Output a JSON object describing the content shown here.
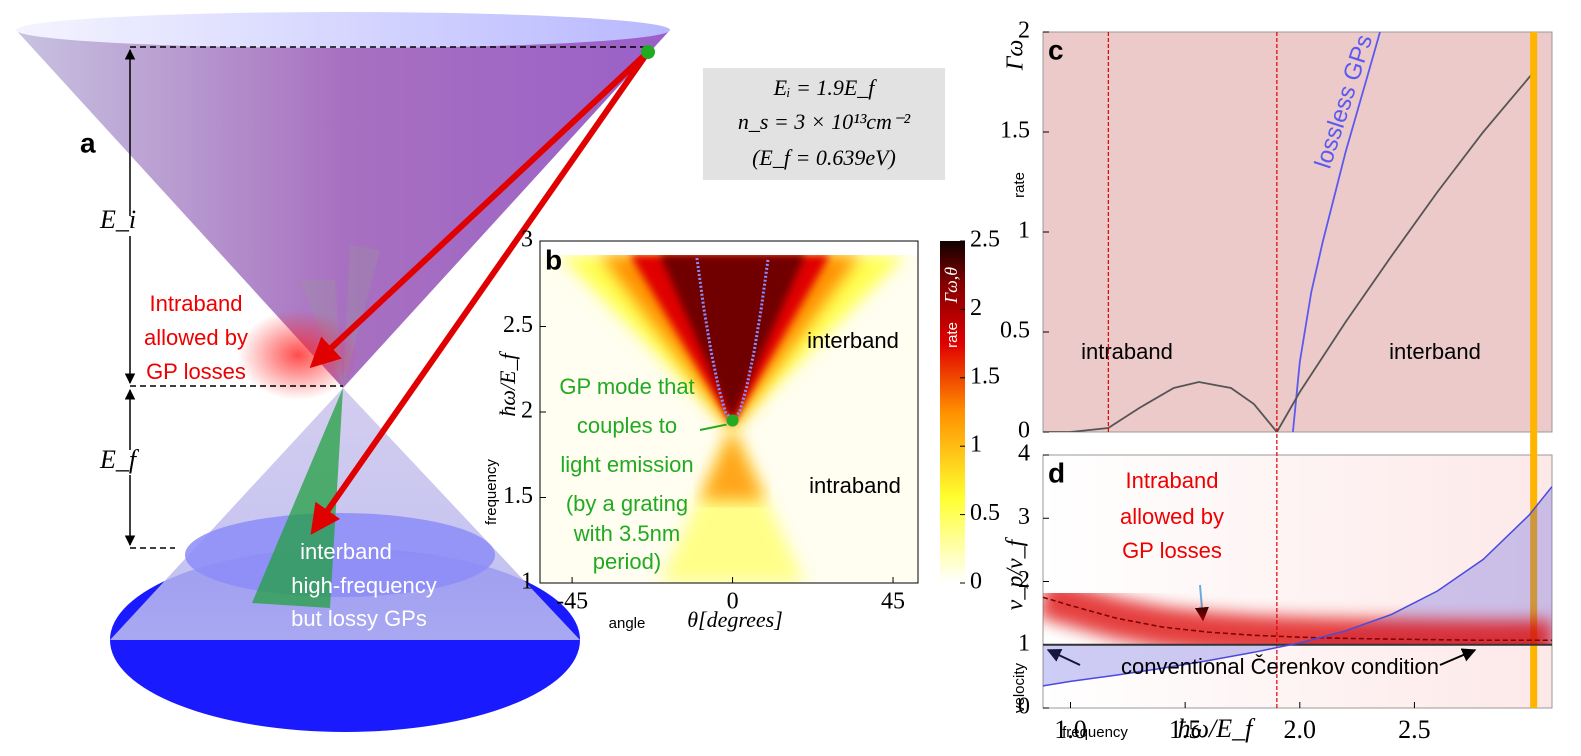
{
  "diagram": {
    "label": "a",
    "energy_labels": [
      "E_i",
      "E_f"
    ],
    "intraband_note": [
      "Intraband",
      "allowed by",
      "GP losses"
    ],
    "interband_note": [
      "interband",
      "high-frequency",
      "but lossy GPs"
    ]
  },
  "parameters": [
    "Eᵢ = 1.9E_f",
    "n_s = 3 × 10¹³cm⁻²",
    "(E_f = 0.639eV)"
  ],
  "chart_data": [
    {
      "type": "heatmap",
      "panel_label": "b",
      "xlabel_name": "angle",
      "xlabel": "θ[degrees]",
      "ylabel_name": "frequency",
      "ylabel": "ħω/E_f",
      "xlim": [
        -54,
        52
      ],
      "ylim": [
        1,
        3
      ],
      "xticks": [
        -45,
        0,
        45
      ],
      "yticks": [
        1,
        1.5,
        2,
        2.5,
        3
      ],
      "annotations": [
        "interband",
        "intraband"
      ],
      "gp_note": [
        "GP mode that",
        "couples to",
        "light emission",
        "(by a grating",
        "with 3.5nm",
        "period)"
      ],
      "series": [
        {
          "color": "#8c8cff",
          "x": [
            -10,
            -8,
            -6,
            -4,
            -2,
            0
          ],
          "values": [
            2.9,
            2.6,
            2.35,
            2.15,
            2.0,
            1.95
          ]
        },
        {
          "color": "#8c8cff",
          "x": [
            0,
            2,
            4,
            6,
            8,
            10
          ],
          "values": [
            1.95,
            2.0,
            2.15,
            2.35,
            2.6,
            2.9
          ]
        }
      ],
      "marker": {
        "x": 0,
        "y": 1.95,
        "color": "#22aa22"
      },
      "colorbar": {
        "label": "Γω,θ",
        "name": "rate",
        "lim": [
          0,
          2.5
        ],
        "ticks": [
          0,
          0.5,
          1,
          1.5,
          2,
          2.5
        ]
      }
    },
    {
      "type": "line",
      "panel_label": "c",
      "ylabel": "Γω",
      "ylabel_name": "rate",
      "xlim": [
        0.88,
        3.1
      ],
      "ylim": [
        0,
        2
      ],
      "yticks": [
        0,
        0.5,
        1,
        1.5,
        2
      ],
      "vlines": [
        1.165,
        1.9
      ],
      "highlight_x": 3.02,
      "region_labels": [
        "intraband",
        "interband"
      ],
      "series": [
        {
          "name": "lossless GPs",
          "color": "#5a5af0",
          "x": [
            1.97,
            2.0,
            2.05,
            2.1,
            2.2,
            2.3,
            2.35
          ],
          "values": [
            0,
            0.35,
            0.7,
            0.95,
            1.4,
            1.8,
            2.0
          ]
        },
        {
          "color": "#555555",
          "x": [
            0.88,
            1.0,
            1.165,
            1.3,
            1.45,
            1.56,
            1.7,
            1.8,
            1.9,
            2.0,
            2.2,
            2.4,
            2.6,
            2.8,
            3.02
          ],
          "values": [
            0,
            0,
            0.02,
            0.12,
            0.22,
            0.25,
            0.22,
            0.14,
            0,
            0.2,
            0.55,
            0.88,
            1.2,
            1.5,
            1.8
          ]
        }
      ]
    },
    {
      "type": "line",
      "panel_label": "d",
      "ylabel": "v_p/v_f",
      "ylabel_name": "velocity",
      "xlabel": "ħω/E_f",
      "xlabel_name": "frequency",
      "xlim": [
        0.88,
        3.1
      ],
      "ylim": [
        0,
        4
      ],
      "yticks": [
        0,
        1,
        2,
        3,
        4
      ],
      "xticks": [
        {
          "value": 1,
          "label": "1.0"
        },
        1.5,
        {
          "value": 2,
          "label": "2.0"
        },
        2.5
      ],
      "reference_y": 1,
      "annotations": {
        "losses": [
          "Intraband",
          "allowed by",
          "GP losses"
        ],
        "cherenkov": "conventional Čerenkov condition"
      },
      "series": [
        {
          "color": "#4a4ae0",
          "x": [
            0.88,
            1.0,
            1.2,
            1.4,
            1.6,
            1.8,
            2.0,
            2.2,
            2.4,
            2.6,
            2.8,
            3.0,
            3.1
          ],
          "values": [
            0.35,
            0.42,
            0.52,
            0.63,
            0.75,
            0.88,
            1.03,
            1.22,
            1.48,
            1.85,
            2.35,
            3.05,
            3.5
          ]
        },
        {
          "color": "#dd0000",
          "x": [
            0.88,
            1.0,
            1.2,
            1.4,
            1.6,
            1.8,
            2.0,
            2.2,
            2.4,
            2.6,
            2.8,
            3.0,
            3.1
          ],
          "values": [
            1.75,
            1.62,
            1.42,
            1.28,
            1.2,
            1.15,
            1.12,
            1.1,
            1.09,
            1.08,
            1.07,
            1.07,
            1.07
          ]
        }
      ]
    }
  ]
}
